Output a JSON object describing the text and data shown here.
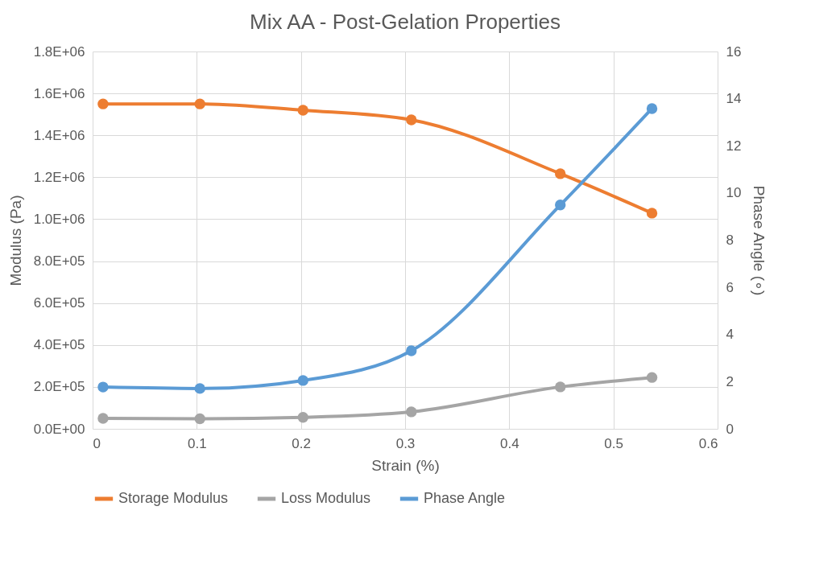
{
  "chart_data": {
    "type": "line",
    "title": "Mix AA - Post-Gelation Properties",
    "xlabel": "Strain (%)",
    "ylabel": "Modulus (Pa)",
    "y2label": "Phase Angle (∘)",
    "x": [
      0.01,
      0.103,
      0.202,
      0.306,
      0.449,
      0.537
    ],
    "series": [
      {
        "name": "Storage Modulus",
        "color": "#ed7d31",
        "values": [
          1550000,
          1550000,
          1520000,
          1474000,
          1217000,
          1029000
        ]
      },
      {
        "name": "Loss Modulus",
        "color": "#a5a5a5",
        "values": [
          50000,
          48000,
          55000,
          81000,
          200000,
          245000
        ]
      },
      {
        "name": "Phase Angle",
        "color": "#5b9bd5",
        "axis": "y2",
        "values": [
          1.77,
          1.71,
          2.05,
          3.31,
          9.49,
          13.58
        ]
      }
    ],
    "xlim": [
      0,
      0.6
    ],
    "xticks": [
      0,
      0.1,
      0.2,
      0.3,
      0.4,
      0.5,
      0.6
    ],
    "ylim": [
      0,
      1800000
    ],
    "yticks": [
      {
        "value": 0,
        "label": "0.0E+00"
      },
      {
        "value": 200000,
        "label": "2.0E+05"
      },
      {
        "value": 400000,
        "label": "4.0E+05"
      },
      {
        "value": 600000,
        "label": "6.0E+05"
      },
      {
        "value": 800000,
        "label": "8.0E+05"
      },
      {
        "value": 1000000,
        "label": "1.0E+06"
      },
      {
        "value": 1200000,
        "label": "1.2E+06"
      },
      {
        "value": 1400000,
        "label": "1.4E+06"
      },
      {
        "value": 1600000,
        "label": "1.6E+06"
      },
      {
        "value": 1800000,
        "label": "1.8E+06"
      }
    ],
    "y2lim": [
      0,
      16
    ],
    "y2ticks": [
      0,
      2,
      4,
      6,
      8,
      10,
      12,
      14,
      16
    ],
    "grid": true,
    "legend": "bottom",
    "marker": "circle",
    "line_style": "solid"
  }
}
